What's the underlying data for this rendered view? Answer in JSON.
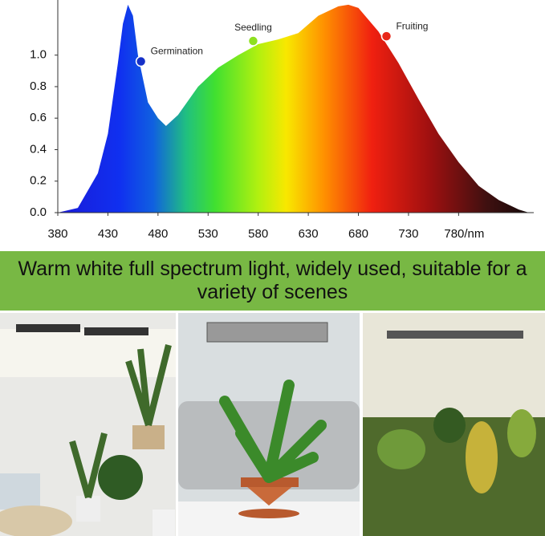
{
  "chart_data": {
    "type": "area",
    "x": [
      380,
      400,
      420,
      430,
      440,
      445,
      450,
      455,
      460,
      470,
      480,
      488,
      500,
      520,
      540,
      560,
      580,
      600,
      620,
      640,
      660,
      670,
      680,
      700,
      720,
      740,
      760,
      780,
      800,
      820,
      840,
      850
    ],
    "values": [
      0,
      0.03,
      0.25,
      0.5,
      0.95,
      1.2,
      1.32,
      1.25,
      1.0,
      0.7,
      0.6,
      0.55,
      0.62,
      0.8,
      0.92,
      1.0,
      1.07,
      1.1,
      1.14,
      1.25,
      1.31,
      1.32,
      1.3,
      1.15,
      0.95,
      0.72,
      0.5,
      0.32,
      0.17,
      0.08,
      0.02,
      0
    ],
    "xlim": [
      380,
      855
    ],
    "ylim": [
      0,
      1.35
    ],
    "xticks": [
      380,
      430,
      480,
      530,
      580,
      630,
      680,
      730,
      {
        "value": 780,
        "label": "780/nm"
      }
    ],
    "yticks": [
      {
        "value": 0,
        "label": "0.0"
      },
      0.2,
      0.4,
      0.6,
      0.8,
      {
        "value": 1,
        "label": "1.0"
      }
    ],
    "annotations": [
      {
        "text": "Germination",
        "x": 463,
        "y": 0.96,
        "color": "#1530c8"
      },
      {
        "text": "Seedling",
        "x": 575,
        "y": 1.09,
        "color": "#8ee020"
      },
      {
        "text": "Fruiting",
        "x": 708,
        "y": 1.12,
        "color": "#e8281a"
      }
    ]
  },
  "banner": {
    "text": "Warm white full spectrum light, widely used, suitable for a variety of scenes"
  }
}
